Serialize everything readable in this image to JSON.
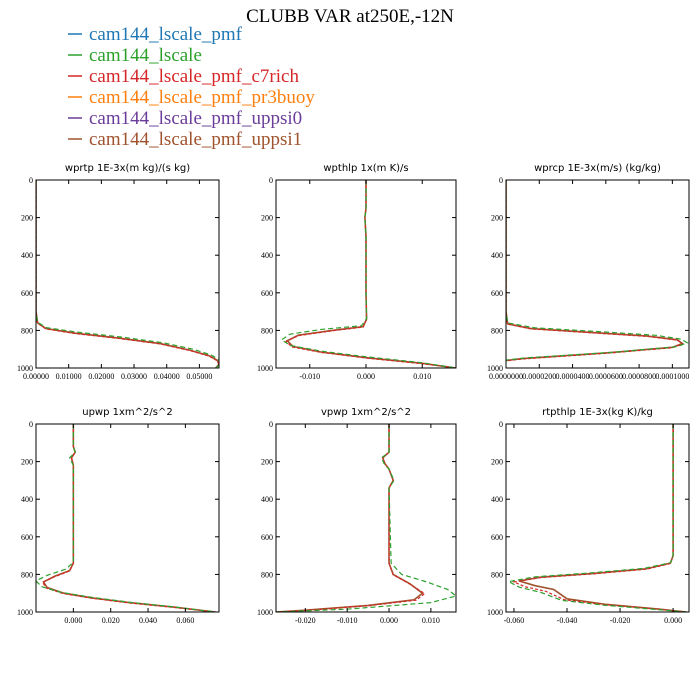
{
  "figure": {
    "title": "CLUBB VAR at250E,-12N"
  },
  "legend": [
    {
      "label": "cam144_lscale_pmf",
      "color": "#1f77b4"
    },
    {
      "label": "cam144_lscale",
      "color": "#2ca02c"
    },
    {
      "label": "cam144_lscale_pmf_c7rich",
      "color": "#d62728"
    },
    {
      "label": "cam144_lscale_pmf_pr3buoy",
      "color": "#ff7f0e"
    },
    {
      "label": "cam144_lscale_pmf_uppsi0",
      "color": "#6a3d9a"
    },
    {
      "label": "cam144_lscale_pmf_uppsi1",
      "color": "#a0522d"
    }
  ],
  "chart_data": [
    {
      "type": "line",
      "title": "wprtp  1E-3x(m kg)/(s kg)",
      "xlim": [
        0,
        0.056
      ],
      "ylim": [
        0,
        1000
      ],
      "yinvert": true,
      "xticks": [
        0,
        0.01,
        0.02,
        0.03,
        0.04,
        0.05
      ],
      "xtick_labels": [
        "0.00000",
        "0.01000",
        "0.02000",
        "0.03000",
        "0.04000",
        "0.05000"
      ],
      "yticks": [
        0,
        200,
        400,
        600,
        800,
        1000
      ],
      "ytick_labels": [
        "0",
        "200",
        "400",
        "600",
        "800",
        "1000"
      ],
      "series": [
        {
          "label": "cam144_lscale_pmf_uppsi1",
          "color": "#a0522d",
          "dash": "",
          "x": [
            0,
            0,
            0.0005,
            0.003,
            0.012,
            0.025,
            0.038,
            0.047,
            0.053,
            0.0555,
            0.056,
            0.055
          ],
          "y": [
            0,
            700,
            760,
            790,
            815,
            840,
            870,
            905,
            935,
            960,
            980,
            1000
          ]
        },
        {
          "label": "cam144_lscale_pmf_c7rich",
          "color": "#d62728",
          "dash": "3,2",
          "x": [
            0,
            0,
            0.0005,
            0.003,
            0.012,
            0.025,
            0.038,
            0.047,
            0.053,
            0.0555,
            0.056,
            0.055
          ],
          "y": [
            0,
            700,
            762,
            792,
            817,
            842,
            872,
            907,
            937,
            962,
            982,
            1000
          ]
        },
        {
          "label": "cam144_lscale",
          "color": "#2ca02c",
          "dash": "5,3",
          "x": [
            0,
            0,
            0.0004,
            0.003,
            0.013,
            0.026,
            0.039,
            0.048,
            0.0535,
            0.056,
            0.0565,
            0.055
          ],
          "y": [
            0,
            700,
            755,
            785,
            810,
            835,
            866,
            900,
            930,
            955,
            978,
            1000
          ]
        }
      ]
    },
    {
      "type": "line",
      "title": "wpthlp  1x(m K)/s",
      "xlim": [
        -0.016,
        0.016
      ],
      "ylim": [
        0,
        1000
      ],
      "yinvert": true,
      "xticks": [
        -0.01,
        0,
        0.01
      ],
      "xtick_labels": [
        "-0.010",
        "0.000",
        "0.010"
      ],
      "yticks": [
        0,
        200,
        400,
        600,
        800,
        1000
      ],
      "ytick_labels": [
        "0",
        "200",
        "400",
        "600",
        "800",
        "1000"
      ],
      "series": [
        {
          "label": "cam144_lscale_pmf_uppsi1",
          "color": "#a0522d",
          "dash": "",
          "x": [
            0,
            0,
            -0.0002,
            0,
            0,
            0.0001,
            -0.0005,
            -0.006,
            -0.012,
            -0.014,
            -0.013,
            -0.008,
            0,
            0.01,
            0.016
          ],
          "y": [
            0,
            150,
            200,
            300,
            600,
            740,
            780,
            800,
            825,
            855,
            885,
            915,
            945,
            975,
            1000
          ]
        },
        {
          "label": "cam144_lscale_pmf_c7rich",
          "color": "#d62728",
          "dash": "3,2",
          "x": [
            0,
            0,
            -0.0002,
            0,
            0,
            0.0001,
            -0.0005,
            -0.006,
            -0.012,
            -0.0142,
            -0.0132,
            -0.008,
            0,
            0.01,
            0.016
          ],
          "y": [
            0,
            150,
            200,
            300,
            600,
            742,
            782,
            802,
            828,
            858,
            888,
            917,
            947,
            977,
            1000
          ]
        },
        {
          "label": "cam144_lscale",
          "color": "#2ca02c",
          "dash": "5,3",
          "x": [
            0,
            0,
            -0.0002,
            0,
            0,
            0.0001,
            -0.0008,
            -0.008,
            -0.0135,
            -0.015,
            -0.0135,
            -0.008,
            0,
            0.01,
            0.016
          ],
          "y": [
            0,
            150,
            200,
            300,
            600,
            738,
            775,
            795,
            820,
            850,
            880,
            910,
            940,
            972,
            1000
          ]
        }
      ]
    },
    {
      "type": "line",
      "title": "wprcp  1E-3x(m/s) (kg/kg)",
      "xlim": [
        0,
        0.00011
      ],
      "ylim": [
        0,
        1000
      ],
      "yinvert": true,
      "xticks": [
        0,
        2e-05,
        4e-05,
        6e-05,
        8e-05,
        0.0001
      ],
      "xtick_labels": [
        "0.0000000",
        "0.0000200",
        "0.0000400",
        "0.0000600",
        "0.0000800",
        "0.0001000"
      ],
      "yticks": [
        0,
        200,
        400,
        600,
        800,
        1000
      ],
      "ytick_labels": [
        "0",
        "200",
        "400",
        "600",
        "800",
        "1000"
      ],
      "series": [
        {
          "label": "cam144_lscale_pmf_uppsi1",
          "color": "#a0522d",
          "dash": "",
          "x": [
            0,
            0,
            1e-06,
            1.5e-05,
            5e-05,
            8.5e-05,
            0.000103,
            0.000106,
            0.0001,
            6e-05,
            1e-05,
            0
          ],
          "y": [
            0,
            700,
            765,
            790,
            810,
            830,
            850,
            870,
            890,
            920,
            950,
            960
          ]
        },
        {
          "label": "cam144_lscale_pmf_c7rich",
          "color": "#d62728",
          "dash": "3,2",
          "x": [
            0,
            0,
            1e-06,
            1.5e-05,
            5e-05,
            8.5e-05,
            0.000103,
            0.0001065,
            0.0001,
            6e-05,
            1e-05,
            0
          ],
          "y": [
            0,
            700,
            767,
            792,
            812,
            832,
            852,
            872,
            892,
            922,
            952,
            962
          ]
        },
        {
          "label": "cam144_lscale",
          "color": "#2ca02c",
          "dash": "5,3",
          "x": [
            0,
            0,
            1e-06,
            1.7e-05,
            5.5e-05,
            9e-05,
            0.000105,
            0.000109,
            0.000103,
            6.5e-05,
            1.2e-05,
            0
          ],
          "y": [
            0,
            700,
            760,
            786,
            806,
            826,
            846,
            866,
            886,
            916,
            946,
            958
          ]
        }
      ]
    },
    {
      "type": "line",
      "title": "upwp  1xm^2/s^2",
      "xlim": [
        -0.02,
        0.078
      ],
      "ylim": [
        0,
        1000
      ],
      "yinvert": true,
      "xticks": [
        0,
        0.02,
        0.04,
        0.06
      ],
      "xtick_labels": [
        "0.000",
        "0.020",
        "0.040",
        "0.060"
      ],
      "yticks": [
        0,
        200,
        400,
        600,
        800,
        1000
      ],
      "ytick_labels": [
        "0",
        "200",
        "400",
        "600",
        "800",
        "1000"
      ],
      "series": [
        {
          "label": "cam144_lscale_pmf_uppsi1",
          "color": "#a0522d",
          "dash": "",
          "x": [
            0,
            0,
            0.001,
            -0.001,
            0,
            0,
            -0.002,
            -0.01,
            -0.016,
            -0.014,
            -0.005,
            0.01,
            0.03,
            0.055,
            0.076
          ],
          "y": [
            0,
            120,
            150,
            180,
            220,
            740,
            780,
            810,
            840,
            870,
            900,
            925,
            950,
            975,
            1000
          ]
        },
        {
          "label": "cam144_lscale_pmf_c7rich",
          "color": "#d62728",
          "dash": "3,2",
          "x": [
            0,
            0,
            0.001,
            -0.001,
            0,
            0,
            -0.002,
            -0.01,
            -0.0165,
            -0.0145,
            -0.0055,
            0.01,
            0.03,
            0.055,
            0.076
          ],
          "y": [
            0,
            120,
            150,
            180,
            220,
            742,
            782,
            812,
            842,
            872,
            902,
            927,
            952,
            977,
            1000
          ]
        },
        {
          "label": "cam144_lscale",
          "color": "#2ca02c",
          "dash": "5,3",
          "x": [
            0,
            0,
            0.001,
            -0.002,
            0,
            0,
            -0.004,
            -0.014,
            -0.02,
            -0.017,
            -0.007,
            0.01,
            0.03,
            0.055,
            0.076
          ],
          "y": [
            0,
            120,
            150,
            180,
            220,
            735,
            772,
            805,
            835,
            865,
            895,
            922,
            948,
            974,
            1000
          ]
        }
      ]
    },
    {
      "type": "line",
      "title": "vpwp  1xm^2/s^2",
      "xlim": [
        -0.027,
        0.016
      ],
      "ylim": [
        0,
        1000
      ],
      "yinvert": true,
      "xticks": [
        -0.02,
        -0.01,
        0,
        0.01
      ],
      "xtick_labels": [
        "-0.020",
        "-0.010",
        "0.000",
        "0.010"
      ],
      "yticks": [
        0,
        200,
        400,
        600,
        800,
        1000
      ],
      "ytick_labels": [
        "0",
        "200",
        "400",
        "600",
        "800",
        "1000"
      ],
      "series": [
        {
          "label": "cam144_lscale_pmf_uppsi1",
          "color": "#a0522d",
          "dash": "",
          "x": [
            0,
            0,
            -0.0015,
            -0.001,
            0,
            0.001,
            0,
            0,
            0.001,
            0.005,
            0.008,
            0.006,
            -0.005,
            -0.02,
            -0.027
          ],
          "y": [
            0,
            150,
            180,
            210,
            240,
            300,
            340,
            740,
            800,
            850,
            900,
            935,
            965,
            990,
            1000
          ]
        },
        {
          "label": "cam144_lscale_pmf_c7rich",
          "color": "#d62728",
          "dash": "3,2",
          "x": [
            0,
            0,
            -0.0015,
            -0.001,
            0,
            0.001,
            0,
            0,
            0.001,
            0.005,
            0.0085,
            0.0065,
            -0.005,
            -0.02,
            -0.027
          ],
          "y": [
            0,
            150,
            180,
            210,
            240,
            300,
            340,
            742,
            802,
            852,
            902,
            937,
            967,
            992,
            1000
          ]
        },
        {
          "label": "cam144_lscale",
          "color": "#2ca02c",
          "dash": "5,3",
          "x": [
            0,
            0,
            -0.0018,
            -0.0012,
            0,
            0.0012,
            0,
            0.0005,
            0.003,
            0.009,
            0.014,
            0.016,
            0.01,
            -0.01,
            -0.027
          ],
          "y": [
            0,
            150,
            180,
            210,
            240,
            300,
            340,
            740,
            800,
            840,
            880,
            915,
            950,
            985,
            1000
          ]
        }
      ]
    },
    {
      "type": "line",
      "title": "rtpthlp  1E-3x(kg K)/kg",
      "xlim": [
        -0.063,
        0.006
      ],
      "ylim": [
        0,
        1000
      ],
      "yinvert": true,
      "xticks": [
        -0.06,
        -0.04,
        -0.02,
        0
      ],
      "xtick_labels": [
        "-0.060",
        "-0.040",
        "-0.020",
        "0.000"
      ],
      "yticks": [
        0,
        200,
        400,
        600,
        800,
        1000
      ],
      "ytick_labels": [
        "0",
        "200",
        "400",
        "600",
        "800",
        "1000"
      ],
      "series": [
        {
          "label": "cam144_lscale_pmf_uppsi1",
          "color": "#a0522d",
          "dash": "",
          "x": [
            0,
            0,
            -0.001,
            -0.01,
            -0.03,
            -0.05,
            -0.058,
            -0.052,
            -0.045,
            -0.04,
            -0.025,
            -0.005,
            0.005
          ],
          "y": [
            0,
            700,
            740,
            770,
            795,
            815,
            835,
            860,
            880,
            930,
            960,
            985,
            1000
          ]
        },
        {
          "label": "cam144_lscale_pmf_c7rich",
          "color": "#d62728",
          "dash": "3,2",
          "x": [
            0,
            0,
            -0.001,
            -0.01,
            -0.03,
            -0.05,
            -0.06,
            -0.056,
            -0.048,
            -0.041,
            -0.025,
            -0.005,
            0.005
          ],
          "y": [
            0,
            700,
            742,
            772,
            797,
            817,
            840,
            865,
            890,
            935,
            962,
            986,
            1000
          ]
        },
        {
          "label": "cam144_lscale",
          "color": "#2ca02c",
          "dash": "5,3",
          "x": [
            0,
            0,
            -0.001,
            -0.011,
            -0.032,
            -0.052,
            -0.062,
            -0.058,
            -0.05,
            -0.042,
            -0.026,
            -0.006,
            0.005
          ],
          "y": [
            0,
            700,
            738,
            768,
            793,
            813,
            838,
            868,
            895,
            938,
            964,
            987,
            1000
          ]
        }
      ]
    }
  ]
}
